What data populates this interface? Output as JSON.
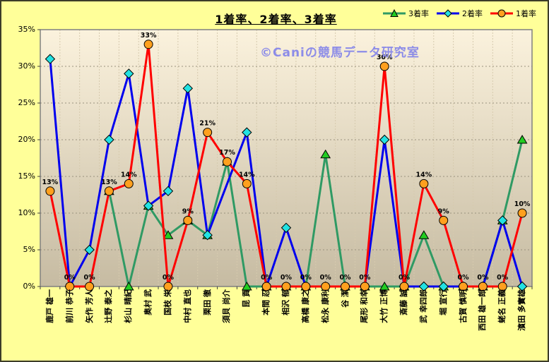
{
  "title": "1着率、2着率、3着率",
  "watermark": {
    "text": "©Caniの競馬データ研究室",
    "color": "#8C8CE8"
  },
  "legend": [
    {
      "label": "3着率",
      "series": "third"
    },
    {
      "label": "2着率",
      "series": "second"
    },
    {
      "label": "1着率",
      "series": "first"
    }
  ],
  "y_axis": {
    "tick_labels": [
      "0%",
      "5%",
      "10%",
      "15%",
      "20%",
      "25%",
      "30%",
      "35%"
    ],
    "min": 0,
    "max": 35,
    "step": 5
  },
  "colors": {
    "background": "#FFFF99",
    "frame_border": "#3C3C28",
    "plot_top": "#FBF2DD",
    "plot_bottom": "#C6BBA2",
    "plot_border": "#808080",
    "h_grid": "#99917E",
    "v_grid": "#D6CAAE",
    "tick": "#404040",
    "first_line": "#FF0000",
    "first_marker": "#FFA01E",
    "second_line": "#0000EE",
    "second_marker": "#22E2E2",
    "third_line": "#2F9A64",
    "third_marker": "#22CC22",
    "data_label": "#000000"
  },
  "chart_data": {
    "type": "line",
    "title": "1着率、2着率、3着率",
    "xlabel": "",
    "ylabel": "",
    "ylim": [
      0,
      35
    ],
    "grid": true,
    "legend_position": "top-right",
    "categories": [
      "鹿戸 雄一",
      "前川 恭子",
      "矢作 芳人",
      "辻野 泰之",
      "杉山 晴紀",
      "奥村 武",
      "国枝 栄",
      "中村 直也",
      "栗田 徹",
      "須貝 尚介",
      "昆 貢",
      "本間 忍",
      "相沢 郁",
      "高橋 康之",
      "松永 康利",
      "谷 潔",
      "尾形 和幸",
      "大竹 正博",
      "斎藤 誠",
      "武 幸四郎",
      "堀 宣行",
      "古賀 慎明",
      "西田 雄一郎",
      "蛯名 正義",
      "濱田 多實雄"
    ],
    "series": [
      {
        "name": "3着率",
        "key": "third",
        "marker": "triangle",
        "values": [
          null,
          null,
          null,
          13,
          0,
          11,
          7,
          9,
          7,
          17,
          0,
          0,
          0,
          0,
          18,
          0,
          0,
          0,
          0,
          7,
          0,
          0,
          0,
          9,
          20
        ],
        "data_labels": false
      },
      {
        "name": "2着率",
        "key": "second",
        "marker": "diamond",
        "values": [
          31,
          0,
          5,
          20,
          29,
          11,
          13,
          27,
          7,
          null,
          21,
          0,
          8,
          0,
          0,
          0,
          0,
          20,
          0,
          0,
          0,
          0,
          0,
          9,
          0
        ],
        "data_labels": false
      },
      {
        "name": "1着率",
        "key": "first",
        "marker": "circle",
        "values": [
          13,
          0,
          0,
          13,
          14,
          33,
          0,
          9,
          21,
          17,
          14,
          0,
          0,
          0,
          0,
          0,
          0,
          30,
          0,
          14,
          9,
          0,
          0,
          0,
          10
        ],
        "data_labels": true
      }
    ]
  }
}
